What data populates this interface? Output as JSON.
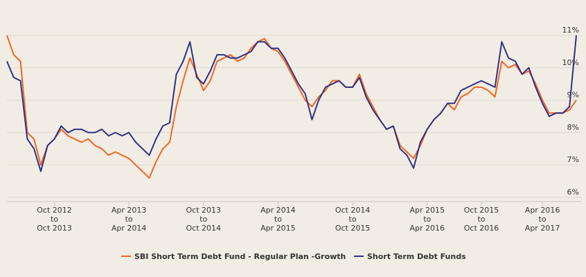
{
  "chart_data": {
    "type": "line",
    "categories": [
      null,
      null,
      null,
      null,
      null,
      null,
      null,
      "Oct 2012\nto\nOct 2013",
      null,
      null,
      null,
      null,
      null,
      null,
      null,
      null,
      null,
      null,
      "Apr 2013\nto\nApr 2014",
      null,
      null,
      null,
      null,
      null,
      null,
      null,
      null,
      null,
      null,
      "Oct 2013\nto\nOct 2014",
      null,
      null,
      null,
      null,
      null,
      null,
      null,
      null,
      null,
      null,
      "Apr 2014\nto\nApr 2015",
      null,
      null,
      null,
      null,
      null,
      null,
      null,
      null,
      null,
      null,
      "Oct 2014\nto\nOct 2015",
      null,
      null,
      null,
      null,
      null,
      null,
      null,
      null,
      null,
      null,
      "Apr 2015\nto\nApr 2016",
      null,
      null,
      null,
      null,
      null,
      null,
      null,
      "Oct 2015\nto\nOct 2016",
      null,
      null,
      null,
      null,
      null,
      null,
      null,
      null,
      "Apr 2016\nto\nApr 2017",
      null,
      null,
      null,
      null,
      null
    ],
    "series": [
      {
        "name": "SBI Short Term Debt Fund - Regular Plan -Growth",
        "color": "#f26522",
        "values": [
          11.0,
          10.4,
          10.2,
          8.0,
          7.8,
          7.0,
          7.6,
          7.8,
          8.1,
          7.9,
          7.8,
          7.7,
          7.8,
          7.6,
          7.5,
          7.3,
          7.4,
          7.3,
          7.2,
          7.0,
          6.8,
          6.6,
          7.1,
          7.5,
          7.7,
          8.8,
          9.6,
          10.3,
          9.8,
          9.3,
          9.6,
          10.2,
          10.3,
          10.4,
          10.2,
          10.3,
          10.6,
          10.8,
          10.9,
          10.6,
          10.5,
          10.2,
          9.8,
          9.4,
          9.0,
          8.8,
          9.1,
          9.3,
          9.6,
          9.6,
          9.4,
          9.4,
          9.8,
          9.2,
          8.8,
          8.4,
          8.1,
          8.2,
          7.6,
          7.4,
          7.2,
          7.6,
          8.1,
          8.4,
          8.6,
          8.9,
          8.7,
          9.1,
          9.2,
          9.4,
          9.4,
          9.3,
          9.1,
          10.2,
          10.0,
          10.1,
          9.8,
          9.9,
          9.5,
          9.0,
          8.6,
          8.6,
          8.6,
          8.7,
          9.0
        ]
      },
      {
        "name": "Short Term Debt Funds",
        "color": "#2e2f86",
        "values": [
          10.2,
          9.7,
          9.6,
          7.8,
          7.5,
          6.8,
          7.6,
          7.8,
          8.2,
          8.0,
          8.1,
          8.1,
          8.0,
          8.0,
          8.1,
          7.9,
          8.0,
          7.9,
          8.0,
          7.7,
          7.5,
          7.3,
          7.8,
          8.2,
          8.3,
          9.8,
          10.2,
          10.8,
          9.7,
          9.5,
          9.9,
          10.4,
          10.4,
          10.3,
          10.3,
          10.4,
          10.5,
          10.8,
          10.8,
          10.6,
          10.6,
          10.3,
          9.9,
          9.5,
          9.2,
          8.4,
          9.0,
          9.4,
          9.5,
          9.6,
          9.4,
          9.4,
          9.7,
          9.1,
          8.7,
          8.4,
          8.1,
          8.2,
          7.5,
          7.3,
          6.9,
          7.7,
          8.1,
          8.4,
          8.6,
          8.9,
          8.9,
          9.3,
          9.4,
          9.5,
          9.6,
          9.5,
          9.4,
          10.8,
          10.3,
          10.2,
          9.8,
          10.0,
          9.4,
          8.9,
          8.5,
          8.6,
          8.6,
          8.8,
          11.0
        ]
      }
    ],
    "ylim": [
      5.87,
      11.13
    ],
    "yticks": [
      {
        "value": 6,
        "label": "6%"
      },
      {
        "value": 7,
        "label": "7%"
      },
      {
        "value": 8,
        "label": "8%"
      },
      {
        "value": 9,
        "label": "9%"
      },
      {
        "value": 10,
        "label": "10%"
      },
      {
        "value": 11,
        "label": "11%"
      }
    ],
    "grid": true
  }
}
